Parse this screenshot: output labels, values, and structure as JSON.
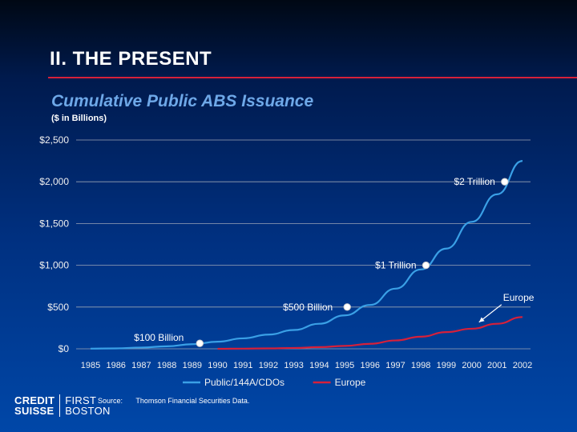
{
  "slide": {
    "title": "II.  THE PRESENT",
    "subtitle": "Cumulative Public ABS Issuance",
    "units": "($ in Billions)"
  },
  "footer": {
    "logo_line1_left": "CREDIT",
    "logo_line2_left": "SUISSE",
    "logo_line1_right": "FIRST",
    "logo_line2_right": "BOSTON",
    "source_label": "Source:",
    "source_text": "Thomson Financial Securities Data."
  },
  "colors": {
    "public_series": "#3aa0e6",
    "europe_series": "#d6203a",
    "gridline": "#9aa3b5",
    "marker": "#ffffff",
    "title_rule": "#d6203a"
  },
  "chart_data": {
    "type": "line",
    "title": "Cumulative Public ABS Issuance",
    "ylabel": "($ in Billions)",
    "xlabel": "",
    "ylim": [
      0,
      2500
    ],
    "y_ticks": [
      0,
      500,
      1000,
      1500,
      2000,
      2500
    ],
    "y_tick_labels": [
      "$0",
      "$500",
      "$1,000",
      "$1,500",
      "$2,000",
      "$2,500"
    ],
    "x_tick_labels": [
      "1985",
      "1986",
      "1987",
      "1988",
      "1989",
      "1990",
      "1991",
      "1992",
      "1993",
      "1994",
      "1995",
      "1996",
      "1997",
      "1998",
      "1999",
      "2000",
      "2001",
      "2002"
    ],
    "grid": true,
    "legend_position": "bottom",
    "series": [
      {
        "name": "Public/144A/CDOs",
        "x": [
          1985,
          1986,
          1987,
          1988,
          1989,
          1990,
          1991,
          1992,
          1993,
          1994,
          1995,
          1996,
          1997,
          1998,
          1999,
          2000,
          2001,
          2002
        ],
        "values": [
          2,
          5,
          15,
          30,
          55,
          85,
          125,
          170,
          225,
          300,
          400,
          525,
          720,
          950,
          1200,
          1520,
          1850,
          2250
        ]
      },
      {
        "name": "Europe",
        "x": [
          1990,
          1991,
          1992,
          1993,
          1994,
          1995,
          1996,
          1997,
          1998,
          1999,
          2000,
          2001,
          2002
        ],
        "values": [
          0,
          2,
          5,
          10,
          20,
          35,
          60,
          100,
          145,
          200,
          240,
          300,
          380
        ]
      }
    ],
    "annotations": [
      {
        "text": "$100 Billion",
        "x": 1989.3,
        "y": 65
      },
      {
        "text": "$500 Billion",
        "x": 1995.1,
        "y": 500
      },
      {
        "text": "$1 Trillion",
        "x": 1998.2,
        "y": 1000
      },
      {
        "text": "$2 Trillion",
        "x": 2001.3,
        "y": 2000
      },
      {
        "text": "Europe",
        "x": 2000.1,
        "y": 280
      }
    ]
  }
}
